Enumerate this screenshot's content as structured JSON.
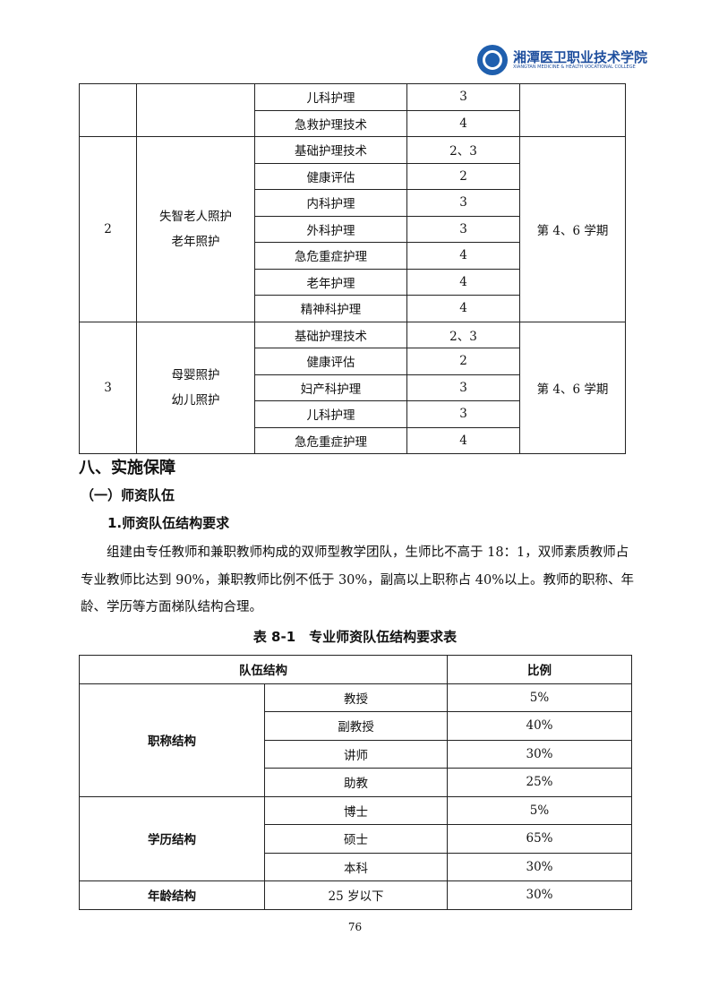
{
  "header": {
    "logo_text": "湘潭医卫职业技术学院",
    "logo_subtext": "XIANGTAN MEDICINE & HEALTH VOCATIONAL COLLEGE",
    "brand_color": "#1f5fae"
  },
  "table1": {
    "groups": [
      {
        "no": "",
        "direction": [
          "",
          ""
        ],
        "semester": "",
        "courses": [
          [
            "儿科护理",
            "3"
          ],
          [
            "急救护理技术",
            "4"
          ]
        ]
      },
      {
        "no": "2",
        "direction": [
          "失智老人照护",
          "老年照护"
        ],
        "semester": "第 4、6 学期",
        "courses": [
          [
            "基础护理技术",
            "2、3"
          ],
          [
            "健康评估",
            "2"
          ],
          [
            "内科护理",
            "3"
          ],
          [
            "外科护理",
            "3"
          ],
          [
            "急危重症护理",
            "4"
          ],
          [
            "老年护理",
            "4"
          ],
          [
            "精神科护理",
            "4"
          ]
        ]
      },
      {
        "no": "3",
        "direction": [
          "母婴照护",
          "幼儿照护"
        ],
        "semester": "第 4、6 学期",
        "courses": [
          [
            "基础护理技术",
            "2、3"
          ],
          [
            "健康评估",
            "2"
          ],
          [
            "妇产科护理",
            "3"
          ],
          [
            "儿科护理",
            "3"
          ],
          [
            "急危重症护理",
            "4"
          ]
        ]
      }
    ]
  },
  "section": {
    "h1": "八、实施保障",
    "h2": "（一）师资队伍",
    "h3": "1.师资队伍结构要求",
    "paragraph": "组建由专任教师和兼职教师构成的双师型教学团队，生师比不高于 18：1，双师素质教师占专业教师比达到 90%，兼职教师比例不低于 30%，副高以上职称占 40%以上。教师的职称、年龄、学历等方面梯队结构合理。"
  },
  "table2": {
    "caption": "表 8-1　专业师资队伍结构要求表",
    "headers": [
      "队伍结构",
      "比例"
    ],
    "groups": [
      {
        "name": "职称结构",
        "rows": [
          [
            "教授",
            "5%"
          ],
          [
            "副教授",
            "40%"
          ],
          [
            "讲师",
            "30%"
          ],
          [
            "助教",
            "25%"
          ]
        ]
      },
      {
        "name": "学历结构",
        "rows": [
          [
            "博士",
            "5%"
          ],
          [
            "硕士",
            "65%"
          ],
          [
            "本科",
            "30%"
          ]
        ]
      },
      {
        "name": "年龄结构",
        "rows": [
          [
            "25 岁以下",
            "30%"
          ]
        ]
      }
    ]
  },
  "page_number": "76"
}
